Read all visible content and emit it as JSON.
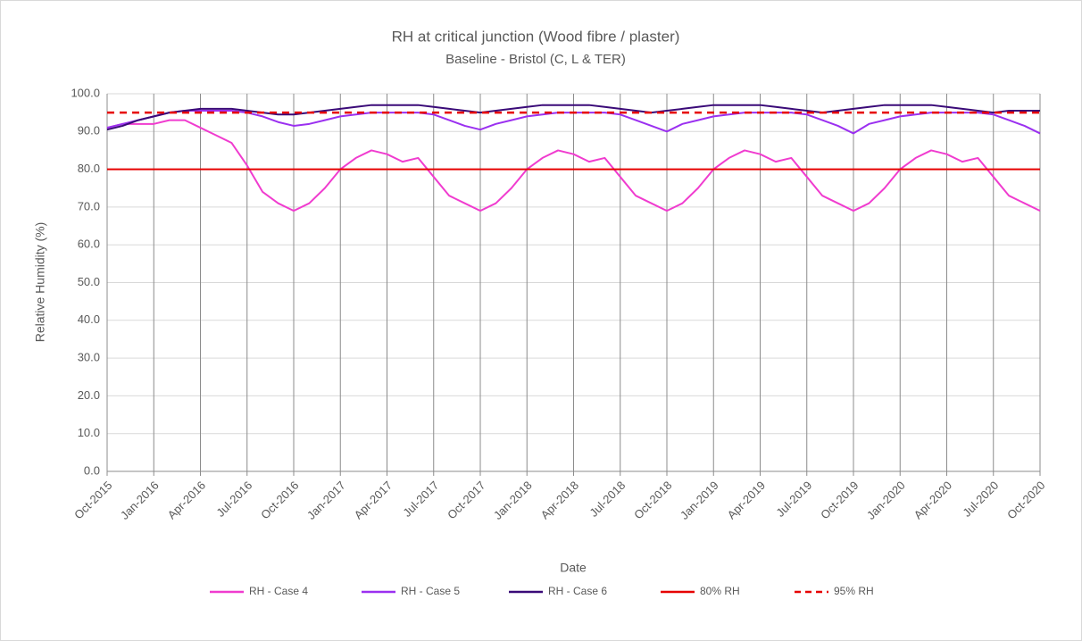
{
  "chart_data": {
    "type": "line",
    "title": "RH at critical junction (Wood fibre / plaster)",
    "subtitle": "Baseline -  Bristol (C, L & TER)",
    "x_label": "Date",
    "y_label": "Relative Humidity (%)",
    "categories": [
      "Oct-2015",
      null,
      null,
      "Jan-2016",
      null,
      null,
      "Apr-2016",
      null,
      null,
      "Jul-2016",
      null,
      null,
      "Oct-2016",
      null,
      null,
      "Jan-2017",
      null,
      null,
      "Apr-2017",
      null,
      null,
      "Jul-2017",
      null,
      null,
      "Oct-2017",
      null,
      null,
      "Jan-2018",
      null,
      null,
      "Apr-2018",
      null,
      null,
      "Jul-2018",
      null,
      null,
      "Oct-2018",
      null,
      null,
      "Jan-2019",
      null,
      null,
      "Apr-2019",
      null,
      null,
      "Jul-2019",
      null,
      null,
      "Oct-2019",
      null,
      null,
      "Jan-2020",
      null,
      null,
      "Apr-2020",
      null,
      null,
      "Jul-2020",
      null,
      null,
      "Oct-2020"
    ],
    "ylim": [
      0,
      100
    ],
    "yticks": [
      {
        "value": 0,
        "label": "0.0"
      },
      {
        "value": 10,
        "label": "10.0"
      },
      {
        "value": 20,
        "label": "20.0"
      },
      {
        "value": 30,
        "label": "30.0"
      },
      {
        "value": 40,
        "label": "40.0"
      },
      {
        "value": 50,
        "label": "50.0"
      },
      {
        "value": 60,
        "label": "60.0"
      },
      {
        "value": 70,
        "label": "70.0"
      },
      {
        "value": 80,
        "label": "80.0"
      },
      {
        "value": 90,
        "label": "90.0"
      },
      {
        "value": 100,
        "label": "100.0"
      }
    ],
    "grid": true,
    "legend": "bottom",
    "series": [
      {
        "name": "RH - Case 4",
        "color": "#f03ccf",
        "values": [
          91,
          92,
          92,
          92,
          93,
          93,
          91,
          89,
          87,
          81,
          74,
          71,
          69,
          71,
          75,
          80,
          83,
          85,
          84,
          82,
          83,
          78,
          73,
          71,
          69,
          71,
          75,
          80,
          83,
          85,
          84,
          82,
          83,
          78,
          73,
          71,
          69,
          71,
          75,
          80,
          83,
          85,
          84,
          82,
          83,
          78,
          73,
          71,
          69,
          71,
          75,
          80,
          83,
          85,
          84,
          82,
          83,
          78,
          73,
          71,
          69
        ]
      },
      {
        "name": "RH - Case 5",
        "color": "#9b30f0",
        "values": [
          91,
          92,
          93,
          94,
          95,
          95.5,
          95.5,
          95.5,
          95.5,
          95,
          94,
          92.5,
          91.5,
          92,
          93,
          94,
          94.5,
          95,
          95,
          95,
          95,
          94.5,
          93,
          91.5,
          90.5,
          92,
          93,
          94,
          94.5,
          95,
          95,
          95,
          95,
          94.5,
          93,
          91.5,
          90,
          92,
          93,
          94,
          94.5,
          95,
          95,
          95,
          95,
          94.5,
          93,
          91.5,
          89.5,
          92,
          93,
          94,
          94.5,
          95,
          95,
          95,
          95,
          94.5,
          93,
          91.5,
          89.5
        ]
      },
      {
        "name": "RH - Case 6",
        "color": "#3a0a78",
        "values": [
          90.5,
          91.5,
          93,
          94,
          95,
          95.5,
          96,
          96,
          96,
          95.5,
          95,
          94.5,
          94.5,
          95,
          95.5,
          96,
          96.5,
          97,
          97,
          97,
          97,
          96.5,
          96,
          95.5,
          95,
          95.5,
          96,
          96.5,
          97,
          97,
          97,
          97,
          96.5,
          96,
          95.5,
          95,
          95.5,
          96,
          96.5,
          97,
          97,
          97,
          97,
          96.5,
          96,
          95.5,
          95,
          95.5,
          96,
          96.5,
          97,
          97,
          97,
          97,
          96.5,
          96,
          95.5,
          95,
          95.5,
          95.5,
          95.5
        ]
      },
      {
        "name": "80% RH",
        "color": "#e60000",
        "values": [
          80,
          80,
          80,
          80,
          80,
          80,
          80,
          80,
          80,
          80,
          80,
          80,
          80,
          80,
          80,
          80,
          80,
          80,
          80,
          80,
          80,
          80,
          80,
          80,
          80,
          80,
          80,
          80,
          80,
          80,
          80,
          80,
          80,
          80,
          80,
          80,
          80,
          80,
          80,
          80,
          80,
          80,
          80,
          80,
          80,
          80,
          80,
          80,
          80,
          80,
          80,
          80,
          80,
          80,
          80,
          80,
          80,
          80,
          80,
          80,
          80
        ]
      },
      {
        "name": "95% RH",
        "color": "#e60000",
        "dashed": true,
        "values": [
          95,
          95,
          95,
          95,
          95,
          95,
          95,
          95,
          95,
          95,
          95,
          95,
          95,
          95,
          95,
          95,
          95,
          95,
          95,
          95,
          95,
          95,
          95,
          95,
          95,
          95,
          95,
          95,
          95,
          95,
          95,
          95,
          95,
          95,
          95,
          95,
          95,
          95,
          95,
          95,
          95,
          95,
          95,
          95,
          95,
          95,
          95,
          95,
          95,
          95,
          95,
          95,
          95,
          95,
          95,
          95,
          95,
          95,
          95,
          95,
          95
        ]
      }
    ]
  }
}
